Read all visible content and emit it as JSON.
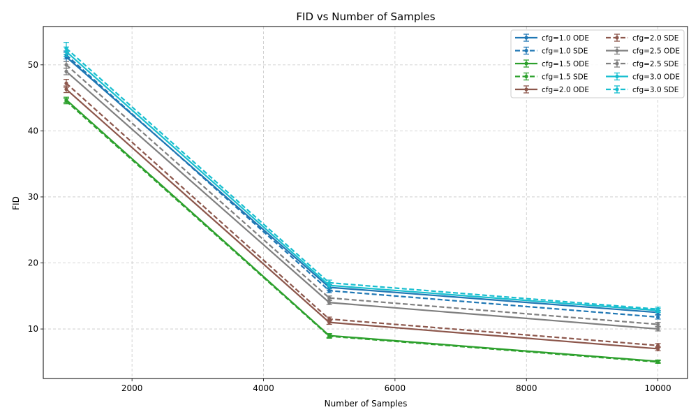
{
  "chart_data": {
    "type": "line",
    "title": "FID vs Number of Samples",
    "xlabel": "Number of Samples",
    "ylabel": "FID",
    "xlim": [
      650,
      10450
    ],
    "ylim": [
      2.5,
      55.8
    ],
    "xticks": [
      2000,
      4000,
      6000,
      8000,
      10000
    ],
    "yticks": [
      10,
      20,
      30,
      40,
      50
    ],
    "grid": true,
    "legend_position": "top-right",
    "legend_columns": 2,
    "x": [
      1000,
      5000,
      10000
    ],
    "series": [
      {
        "name": "cfg=1.0 ODE",
        "color": "#1f77b4",
        "dash": "solid",
        "values": [
          51.2,
          16.3,
          12.5
        ],
        "errors": [
          0.7,
          0.4,
          0.3
        ]
      },
      {
        "name": "cfg=1.0 SDE",
        "color": "#1f77b4",
        "dash": "dashed",
        "values": [
          51.5,
          15.8,
          11.8
        ],
        "errors": [
          0.6,
          0.3,
          0.3
        ]
      },
      {
        "name": "cfg=1.5 ODE",
        "color": "#2ca02c",
        "dash": "solid",
        "values": [
          44.7,
          9.0,
          5.1
        ],
        "errors": [
          0.4,
          0.3,
          0.2
        ]
      },
      {
        "name": "cfg=1.5 SDE",
        "color": "#2ca02c",
        "dash": "dashed",
        "values": [
          44.5,
          8.9,
          5.0
        ],
        "errors": [
          0.4,
          0.3,
          0.2
        ]
      },
      {
        "name": "cfg=2.0 ODE",
        "color": "#8c564b",
        "dash": "solid",
        "values": [
          46.3,
          11.0,
          7.0
        ],
        "errors": [
          0.5,
          0.3,
          0.3
        ]
      },
      {
        "name": "cfg=2.0 SDE",
        "color": "#8c564b",
        "dash": "dashed",
        "values": [
          47.2,
          11.5,
          7.5
        ],
        "errors": [
          0.6,
          0.3,
          0.3
        ]
      },
      {
        "name": "cfg=2.5 ODE",
        "color": "#7f7f7f",
        "dash": "solid",
        "values": [
          49.0,
          14.0,
          10.0
        ],
        "errors": [
          0.5,
          0.3,
          0.3
        ]
      },
      {
        "name": "cfg=2.5 SDE",
        "color": "#7f7f7f",
        "dash": "dashed",
        "values": [
          50.0,
          14.7,
          10.7
        ],
        "errors": [
          0.5,
          0.3,
          0.3
        ]
      },
      {
        "name": "cfg=3.0 ODE",
        "color": "#17becf",
        "dash": "solid",
        "values": [
          52.0,
          16.6,
          12.8
        ],
        "errors": [
          0.7,
          0.4,
          0.3
        ]
      },
      {
        "name": "cfg=3.0 SDE",
        "color": "#17becf",
        "dash": "dashed",
        "values": [
          52.5,
          17.0,
          13.0
        ],
        "errors": [
          0.9,
          0.4,
          0.3
        ]
      }
    ]
  }
}
